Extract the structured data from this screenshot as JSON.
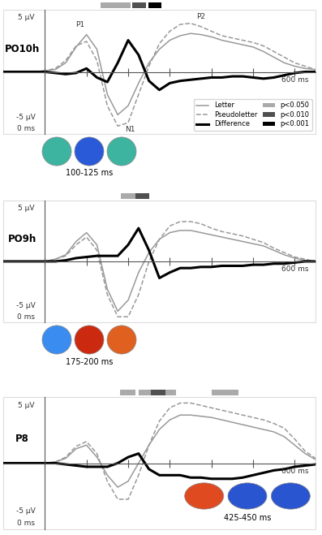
{
  "chart_data": [
    {
      "type": "line",
      "title": "PO10h",
      "x": [
        -100,
        -75,
        -50,
        -25,
        0,
        25,
        50,
        75,
        100,
        125,
        150,
        175,
        200,
        225,
        250,
        275,
        300,
        325,
        350,
        375,
        400,
        425,
        450,
        475,
        500,
        525,
        550,
        575,
        600,
        625,
        650
      ],
      "xlim": [
        -100,
        650
      ],
      "ylim": [
        -5.5,
        5.5
      ],
      "xticks": [
        0,
        100,
        200,
        300,
        400,
        500,
        600
      ],
      "tick_labels": false,
      "series": [
        {
          "name": "Letter",
          "color": "#999999",
          "line_style": "solid",
          "values": [
            0,
            0,
            0,
            0,
            0.1,
            0.2,
            0.8,
            2.2,
            3.3,
            2.0,
            -2.0,
            -3.8,
            -3.0,
            -1.0,
            0.8,
            2.0,
            2.8,
            3.2,
            3.4,
            3.3,
            3.1,
            2.8,
            2.6,
            2.4,
            2.2,
            1.8,
            1.3,
            0.8,
            0.5,
            0.3,
            0.2
          ]
        },
        {
          "name": "Pseudoletter",
          "color": "#999999",
          "line_style": "dashed",
          "values": [
            0,
            0,
            0,
            0,
            0.1,
            0.3,
            1.0,
            2.3,
            2.7,
            1.0,
            -3.0,
            -4.8,
            -4.5,
            -2.0,
            0.5,
            2.5,
            3.6,
            4.2,
            4.3,
            4.0,
            3.6,
            3.2,
            3.0,
            2.8,
            2.6,
            2.3,
            1.8,
            1.3,
            0.8,
            0.5,
            0.2
          ]
        },
        {
          "name": "Difference",
          "color": "#000000",
          "line_style": "solid",
          "values": [
            0,
            0,
            0,
            0,
            0,
            -0.1,
            -0.2,
            -0.1,
            0.3,
            -0.5,
            -0.9,
            0.8,
            2.8,
            1.5,
            -0.8,
            -1.6,
            -1.0,
            -0.8,
            -0.7,
            -0.6,
            -0.5,
            -0.5,
            -0.4,
            -0.4,
            -0.5,
            -0.6,
            -0.5,
            -0.3,
            -0.1,
            0,
            0
          ]
        }
      ],
      "significance_levels": [
        {
          "name": "p<0.050",
          "color": "#aaaaaa"
        },
        {
          "name": "p<0.010",
          "color": "#505050"
        },
        {
          "name": "p<0.001",
          "color": "#000000"
        }
      ],
      "significance": [
        {
          "start": 133,
          "end": 206,
          "level": "p<0.050"
        },
        {
          "start": 210,
          "end": 243,
          "level": "p<0.010"
        },
        {
          "start": 248,
          "end": 279,
          "level": "p<0.001"
        }
      ],
      "annotations": [
        {
          "text": "5 µV",
          "x": -45,
          "y": 4.8
        },
        {
          "text": "-5 µV",
          "x": -45,
          "y": -4.0
        },
        {
          "text": "0 ms",
          "x": -45,
          "y": -5.0
        },
        {
          "text": "600 ms",
          "x": 600,
          "y": -0.7
        },
        {
          "text": "P1",
          "x": 85,
          "y": 4.2
        },
        {
          "text": "N1",
          "x": 205,
          "y": -5.1
        },
        {
          "text": "P2",
          "x": 375,
          "y": 4.9
        }
      ],
      "legend": "lower right",
      "topomap_label": "100-125 ms"
    },
    {
      "type": "line",
      "title": "PO9h",
      "x": [
        -100,
        -75,
        -50,
        -25,
        0,
        25,
        50,
        75,
        100,
        125,
        150,
        175,
        200,
        225,
        250,
        275,
        300,
        325,
        350,
        375,
        400,
        425,
        450,
        475,
        500,
        525,
        550,
        575,
        600,
        625,
        650
      ],
      "xlim": [
        -100,
        650
      ],
      "ylim": [
        -5.5,
        5.5
      ],
      "xticks": [
        0,
        100,
        200,
        300,
        400,
        500,
        600
      ],
      "tick_labels": false,
      "series": [
        {
          "name": "Letter",
          "color": "#999999",
          "line_style": "solid",
          "values": [
            0,
            0,
            0,
            0,
            0,
            0.2,
            0.6,
            1.8,
            2.6,
            1.5,
            -2.5,
            -4.5,
            -3.5,
            -1.0,
            0.8,
            2.0,
            2.6,
            2.8,
            2.8,
            2.6,
            2.4,
            2.2,
            2.0,
            1.8,
            1.6,
            1.4,
            1.0,
            0.6,
            0.3,
            0.1,
            0
          ]
        },
        {
          "name": "Pseudoletter",
          "color": "#999999",
          "line_style": "dashed",
          "values": [
            0,
            0,
            0,
            0,
            0,
            0.2,
            0.5,
            1.5,
            2.2,
            1.0,
            -3.0,
            -5.0,
            -5.0,
            -3.0,
            0,
            2.0,
            3.2,
            3.6,
            3.6,
            3.4,
            3.0,
            2.7,
            2.5,
            2.3,
            2.0,
            1.7,
            1.2,
            0.8,
            0.4,
            0.2,
            0
          ]
        },
        {
          "name": "Difference",
          "color": "#000000",
          "line_style": "solid",
          "values": [
            0,
            0,
            0,
            0,
            0,
            0,
            0.1,
            0.3,
            0.4,
            0.5,
            0.5,
            0.5,
            1.5,
            3.0,
            1.0,
            -1.5,
            -1.0,
            -0.6,
            -0.6,
            -0.5,
            -0.5,
            -0.4,
            -0.4,
            -0.4,
            -0.3,
            -0.3,
            -0.2,
            -0.2,
            -0.1,
            0,
            0
          ]
        }
      ],
      "significance": [
        {
          "start": 182,
          "end": 218,
          "level": "p<0.050"
        },
        {
          "start": 218,
          "end": 250,
          "level": "p<0.010"
        }
      ],
      "annotations": [
        {
          "text": "5 µV",
          "x": -45,
          "y": 4.8
        },
        {
          "text": "-5 µV",
          "x": -45,
          "y": -4.0
        },
        {
          "text": "0 ms",
          "x": -45,
          "y": -5.0
        },
        {
          "text": "600 ms",
          "x": 600,
          "y": -0.7
        }
      ],
      "topomap_label": "175-200 ms"
    },
    {
      "type": "line",
      "title": "P8",
      "x": [
        -100,
        -75,
        -50,
        -25,
        0,
        25,
        50,
        75,
        100,
        125,
        150,
        175,
        200,
        225,
        250,
        275,
        300,
        325,
        350,
        375,
        400,
        425,
        450,
        475,
        500,
        525,
        550,
        575,
        600,
        625,
        650
      ],
      "xlim": [
        -100,
        650
      ],
      "ylim": [
        -5.5,
        5.5
      ],
      "xticks": [
        0,
        100,
        200,
        300,
        400,
        500,
        600
      ],
      "tick_labels": false,
      "series": [
        {
          "name": "Letter",
          "color": "#999999",
          "line_style": "solid",
          "values": [
            0,
            0,
            0,
            0,
            0,
            0.1,
            0.4,
            1.2,
            1.5,
            0.5,
            -1.0,
            -2.0,
            -1.5,
            0,
            1.5,
            2.8,
            3.6,
            4.0,
            4.0,
            3.9,
            3.8,
            3.6,
            3.4,
            3.2,
            3.0,
            2.8,
            2.6,
            2.2,
            1.5,
            0.8,
            0.3
          ]
        },
        {
          "name": "Pseudoletter",
          "color": "#999999",
          "line_style": "dashed",
          "values": [
            0,
            0,
            0,
            0,
            0,
            0.1,
            0.5,
            1.4,
            1.8,
            0.8,
            -1.5,
            -3.0,
            -3.0,
            -1.0,
            1.5,
            3.5,
            4.6,
            5.0,
            5.0,
            4.8,
            4.6,
            4.4,
            4.2,
            4.0,
            3.8,
            3.6,
            3.3,
            2.9,
            2.0,
            1.0,
            0.4
          ]
        },
        {
          "name": "Difference",
          "color": "#000000",
          "line_style": "solid",
          "values": [
            0,
            0,
            0,
            0,
            0,
            0,
            -0.1,
            -0.2,
            -0.3,
            -0.3,
            -0.3,
            0,
            0.5,
            0.8,
            -0.5,
            -1.0,
            -1.0,
            -1.0,
            -1.2,
            -1.2,
            -1.3,
            -1.3,
            -1.3,
            -1.2,
            -1.0,
            -0.8,
            -0.6,
            -0.5,
            -0.3,
            -0.2,
            -0.1
          ]
        }
      ],
      "significance": [
        {
          "start": 180,
          "end": 218,
          "level": "p<0.050"
        },
        {
          "start": 225,
          "end": 255,
          "level": "p<0.050"
        },
        {
          "start": 255,
          "end": 290,
          "level": "p<0.010"
        },
        {
          "start": 290,
          "end": 315,
          "level": "p<0.050"
        },
        {
          "start": 400,
          "end": 465,
          "level": "p<0.050"
        }
      ],
      "annotations": [
        {
          "text": "5 µV",
          "x": -45,
          "y": 4.8
        },
        {
          "text": "-5 µV",
          "x": -45,
          "y": -4.0
        },
        {
          "text": "0 ms",
          "x": -45,
          "y": -5.0
        },
        {
          "text": "600 ms",
          "x": 600,
          "y": -0.7
        }
      ],
      "topomap_label": "425-450 ms"
    }
  ]
}
